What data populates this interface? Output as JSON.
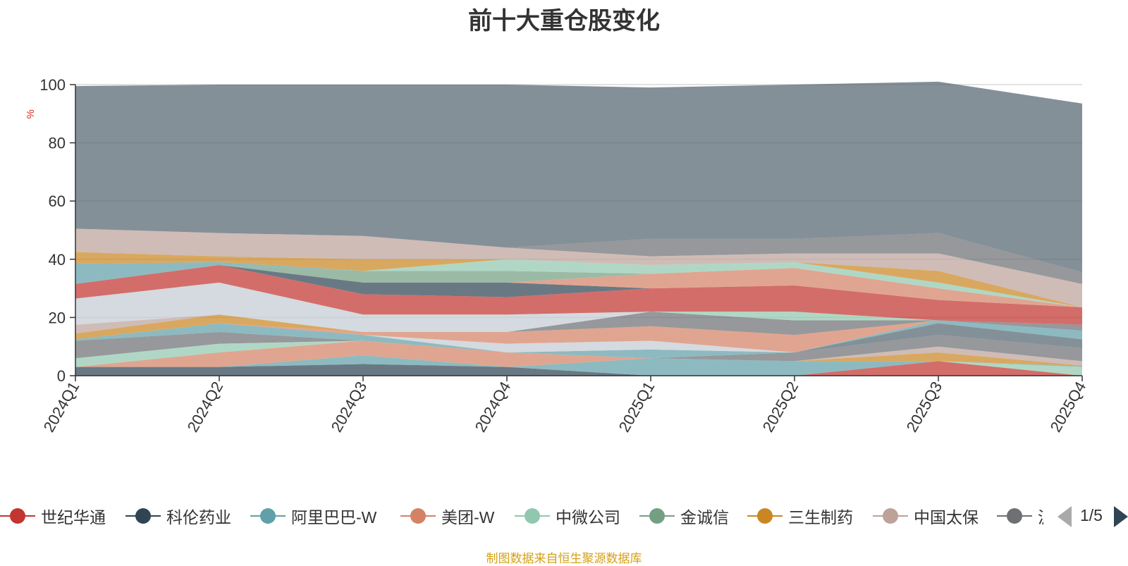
{
  "chart_data": {
    "type": "area",
    "title": "前十大重仓股变化",
    "ylabel": "%",
    "ylim": [
      0,
      100
    ],
    "yticks": [
      0,
      20,
      40,
      60,
      80,
      100
    ],
    "categories": [
      "2024Q1",
      "2024Q2",
      "2024Q3",
      "2024Q4",
      "2025Q1",
      "2025Q2",
      "2025Q3",
      "2025Q4"
    ],
    "stacked": true,
    "grid": true,
    "legend_position": "bottom",
    "series": [
      {
        "name": "世纪华通",
        "color": "#c23531",
        "values": [
          0,
          0,
          0,
          0,
          0,
          0,
          5.0,
          0
        ]
      },
      {
        "name": "科伦药业",
        "color": "#2f4554",
        "values": [
          3.0,
          3.0,
          4.0,
          3.0,
          0,
          0,
          0,
          0
        ]
      },
      {
        "name": "阿里巴巴-W",
        "color": "#61a0a8",
        "values": [
          0,
          0,
          3.0,
          0,
          6.0,
          5.0,
          0,
          0
        ]
      },
      {
        "name": "美团-W",
        "color": "#d48265",
        "values": [
          0,
          5.0,
          5.0,
          5.0,
          0,
          0,
          0,
          0
        ]
      },
      {
        "name": "中微公司",
        "color": "#91c7ae",
        "values": [
          3.0,
          3.0,
          0,
          0,
          0,
          0,
          0,
          3.0
        ]
      },
      {
        "name": "金诚信",
        "color": "#749f83",
        "values": [
          0,
          0,
          0,
          0,
          0,
          0,
          0,
          0.5
        ]
      },
      {
        "name": "三生制药",
        "color": "#ca8622",
        "values": [
          0,
          0,
          0,
          0,
          0,
          0,
          3.0,
          0
        ]
      },
      {
        "name": "中国太保",
        "color": "#bda29a",
        "values": [
          0,
          0,
          0,
          0,
          0,
          0,
          2.0,
          1.5
        ]
      },
      {
        "name": "",
        "color": "#6e7074",
        "values": [
          6.0,
          4.0,
          0,
          0,
          0,
          3.0,
          4.0,
          4.5
        ]
      },
      {
        "name": "",
        "color": "#546570",
        "values": [
          0,
          0,
          0,
          0,
          0,
          0,
          4.0,
          3.0
        ]
      },
      {
        "name": "",
        "color": "#61a0a8",
        "values": [
          0.5,
          3.0,
          2.0,
          0,
          3.0,
          0,
          1.0,
          3.0
        ]
      },
      {
        "name": "",
        "color": "#c4ccd3",
        "values": [
          0,
          0,
          0,
          3.0,
          3.0,
          0,
          0,
          0
        ]
      },
      {
        "name": "",
        "color": "#d48265",
        "values": [
          0,
          0,
          1.0,
          4.0,
          5.0,
          6.0,
          0,
          0
        ]
      },
      {
        "name": "",
        "color": "#ca8622",
        "values": [
          2.0,
          3.0,
          0,
          0,
          0,
          0,
          0,
          0
        ]
      },
      {
        "name": "",
        "color": "#6e7074",
        "values": [
          0,
          0,
          0,
          0,
          5.0,
          5.0,
          0,
          2.0
        ]
      },
      {
        "name": "",
        "color": "#91c7ae",
        "values": [
          0,
          0,
          0,
          0,
          0,
          3.0,
          0,
          0
        ]
      },
      {
        "name": "",
        "color": "#bda29a",
        "values": [
          3.0,
          0,
          0,
          0,
          0,
          0,
          0,
          0
        ]
      },
      {
        "name": "",
        "color": "#c4ccd3",
        "values": [
          9.0,
          11.0,
          6.0,
          6.0,
          0,
          0,
          0,
          0
        ]
      },
      {
        "name": "",
        "color": "#c23531",
        "values": [
          5.0,
          6.0,
          7.0,
          6.0,
          8.0,
          9.0,
          7.0,
          6.0
        ]
      },
      {
        "name": "",
        "color": "#2f4554",
        "values": [
          0,
          0,
          4.0,
          5.0,
          0,
          0,
          0,
          0
        ]
      },
      {
        "name": "",
        "color": "#d48265",
        "values": [
          0,
          0,
          0,
          0,
          5.0,
          6.0,
          4.0,
          0
        ]
      },
      {
        "name": "",
        "color": "#749f83",
        "values": [
          0,
          0,
          4.0,
          4.0,
          0,
          0,
          0,
          0
        ]
      },
      {
        "name": "",
        "color": "#91c7ae",
        "values": [
          0,
          0,
          0,
          4.0,
          3.0,
          2.0,
          2.0,
          0
        ]
      },
      {
        "name": "",
        "color": "#61a0a8",
        "values": [
          7.0,
          1.0,
          0,
          0,
          0,
          0,
          0,
          0
        ]
      },
      {
        "name": "",
        "color": "#ca8622",
        "values": [
          4.0,
          2.0,
          4.0,
          0,
          0,
          0,
          4.0,
          0
        ]
      },
      {
        "name": "",
        "color": "#bda29a",
        "values": [
          8.0,
          8.0,
          8.0,
          4.0,
          3.0,
          3.0,
          6.0,
          8.0
        ]
      },
      {
        "name": "",
        "color": "#6e7074",
        "values": [
          0,
          0,
          0,
          0,
          6.0,
          5.0,
          7.0,
          4.0
        ]
      },
      {
        "name": "",
        "color": "#546570",
        "values": [
          49.0,
          51.0,
          52.0,
          56.0,
          52.0,
          53.0,
          52.0,
          58.0
        ]
      }
    ]
  },
  "legend": {
    "items": [
      "世纪华通",
      "科伦药业",
      "阿里巴巴-W",
      "美团-W",
      "中微公司",
      "金诚信",
      "三生制药",
      "中国太保",
      "沪"
    ],
    "page_label": "1/5"
  },
  "source_note": "制图数据来自恒生聚源数据库"
}
